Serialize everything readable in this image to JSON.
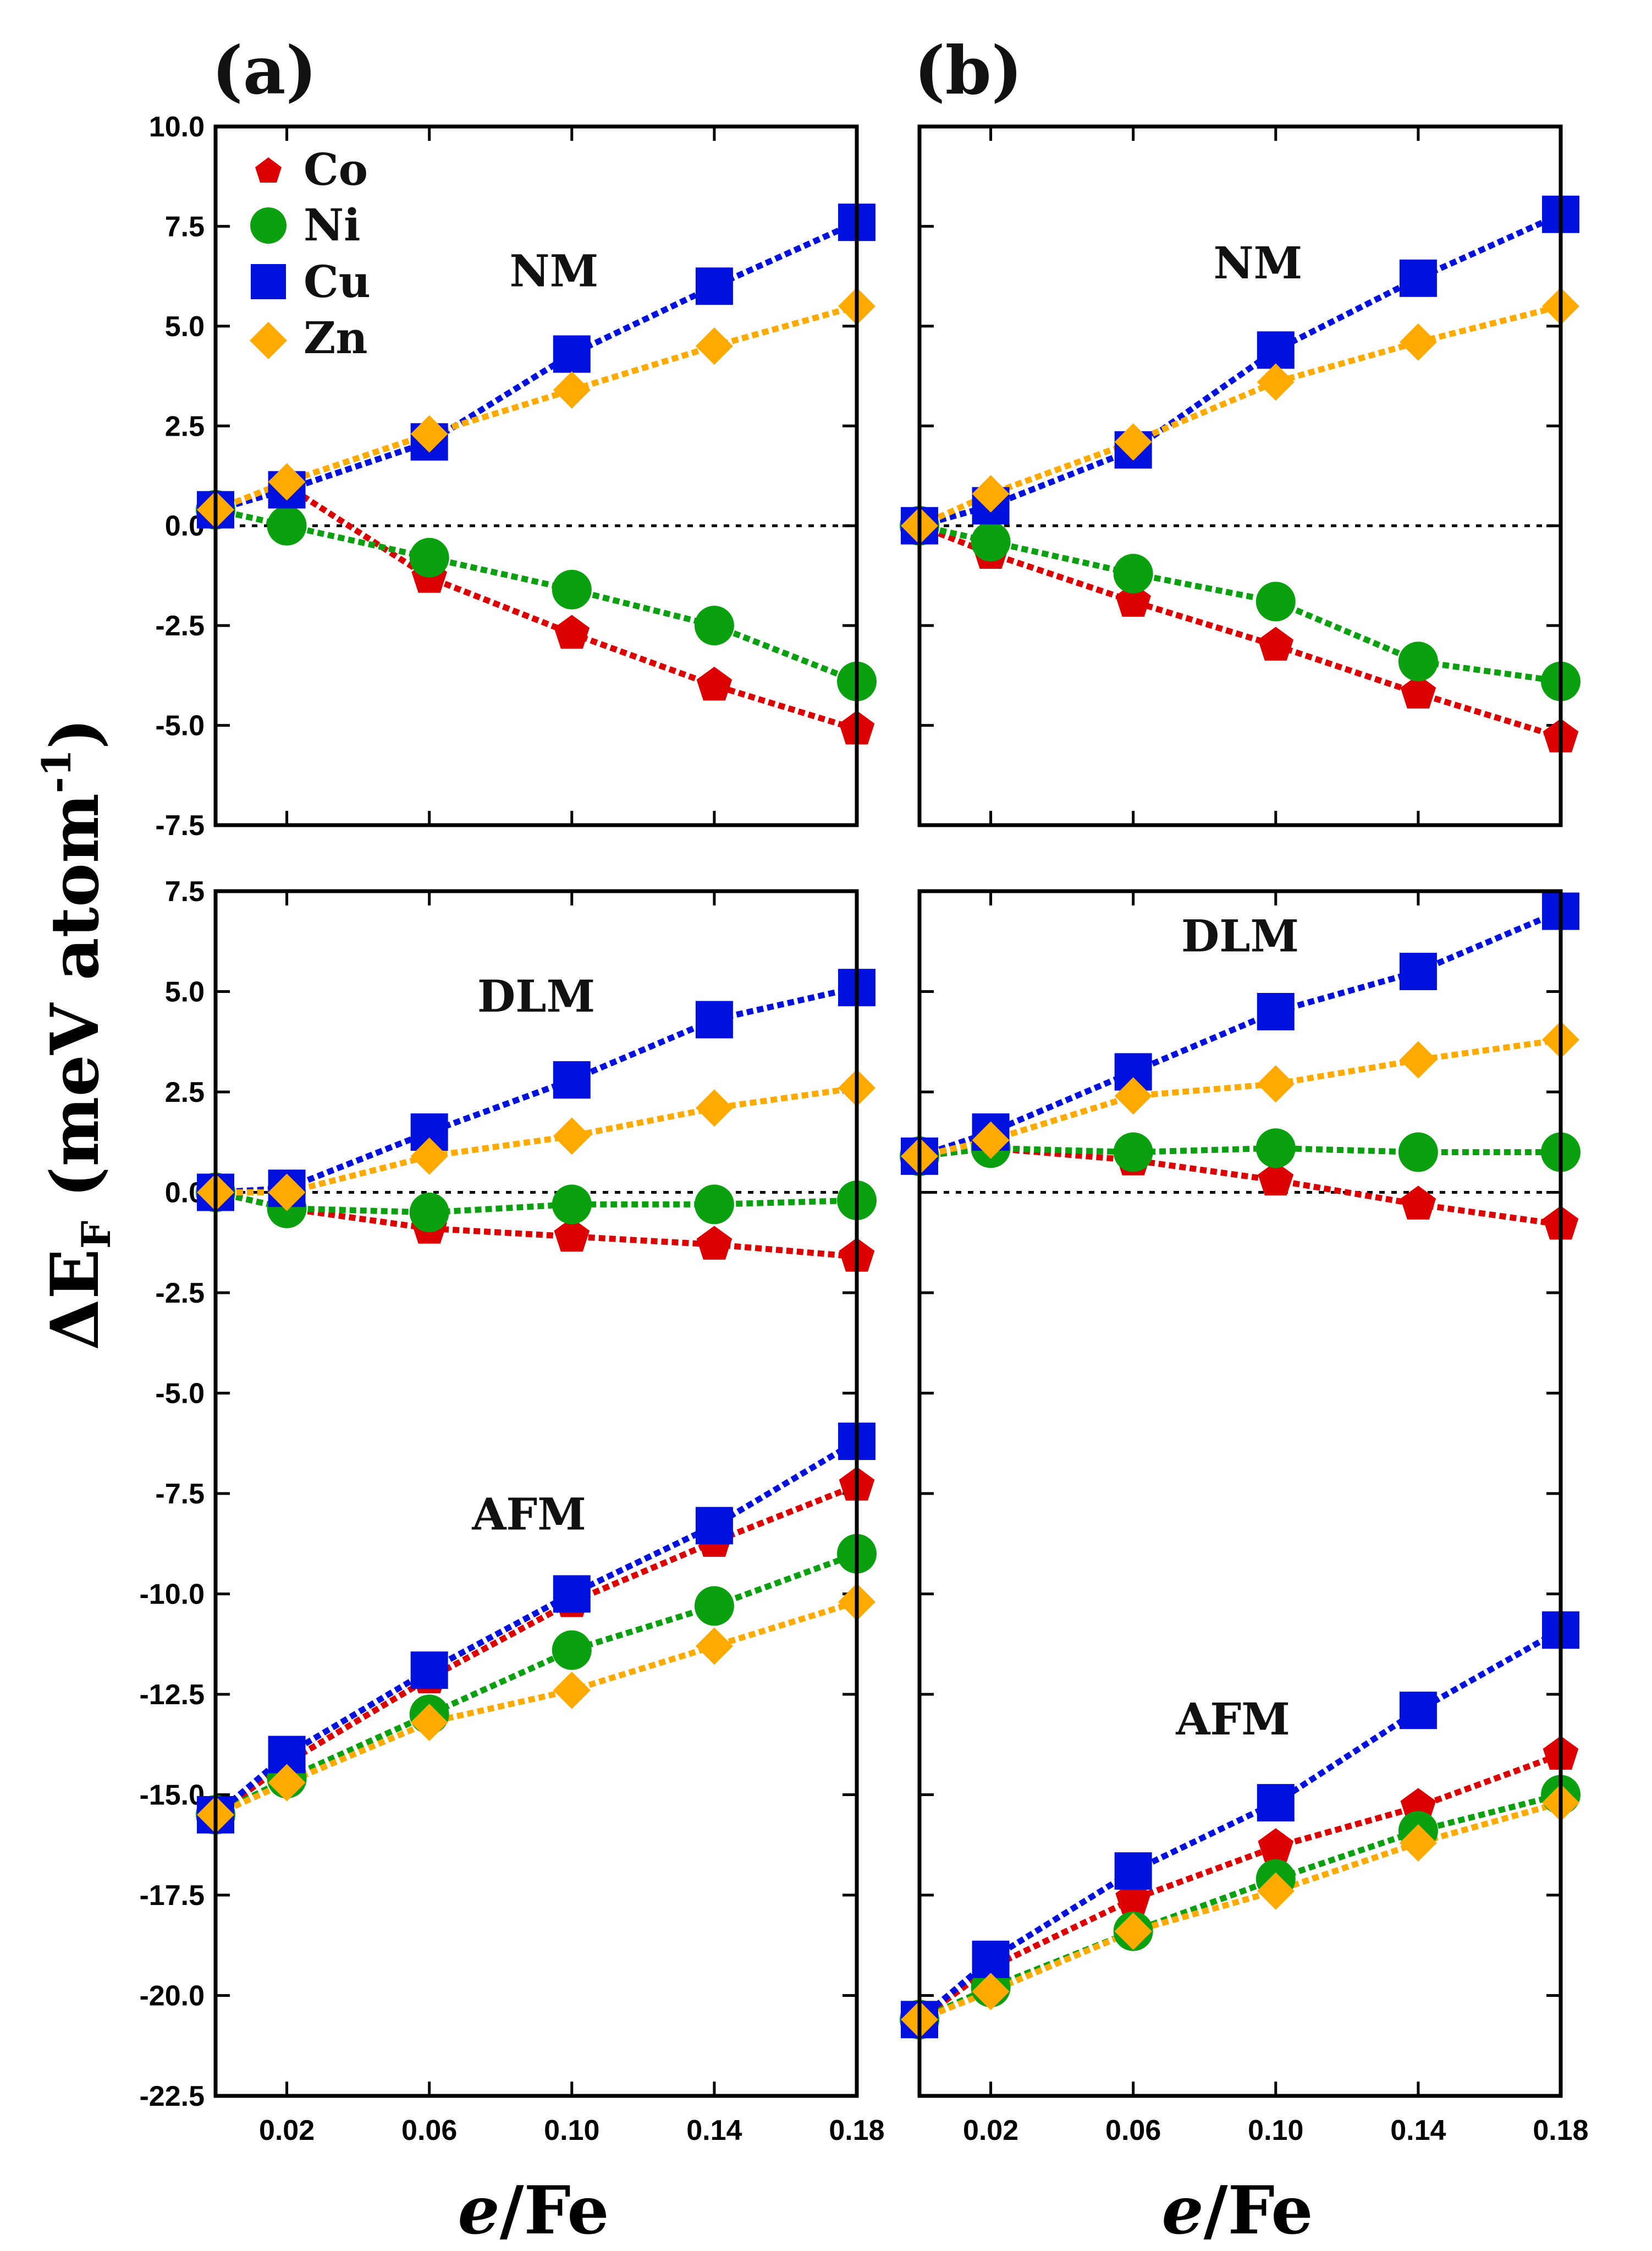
{
  "figure": {
    "ylabel_main": "ΔE",
    "ylabel_sub": "F",
    "ylabel_rest": " (meV atom",
    "ylabel_sup": "-1",
    "ylabel_close": ")",
    "xlabel_var": "e",
    "xlabel_rest": "/Fe"
  },
  "legend": [
    {
      "name": "Co",
      "color": "#dd0000",
      "marker": "pentagon"
    },
    {
      "name": "Ni",
      "color": "#0aa010",
      "marker": "circle"
    },
    {
      "name": "Cu",
      "color": "#0010dd",
      "marker": "square"
    },
    {
      "name": "Zn",
      "color": "#ffaa00",
      "marker": "diamond"
    }
  ],
  "chart_data": [
    {
      "panel": "(a)",
      "region": "top",
      "type": "line",
      "x": [
        0.0,
        0.02,
        0.06,
        0.1,
        0.14,
        0.18
      ],
      "xticks": [
        "0.02",
        "0.06",
        "0.10",
        "0.14",
        "0.18"
      ],
      "xlim": [
        0.0,
        0.18
      ],
      "ylim": [
        -7.5,
        10.0
      ],
      "yticks": [
        "10.0",
        "7.5",
        "5.0",
        "2.5",
        "0.0",
        "-2.5",
        "-5.0",
        "-7.5"
      ],
      "reference_line": 0.0,
      "annotations": [
        {
          "text": "NM",
          "x": 0.095,
          "y": 6.0
        }
      ],
      "series": [
        {
          "name": "Co",
          "values": [
            0.4,
            1.0,
            -1.3,
            -2.7,
            -4.0,
            -5.1
          ]
        },
        {
          "name": "Ni",
          "values": [
            0.4,
            0.0,
            -0.8,
            -1.6,
            -2.5,
            -3.9
          ]
        },
        {
          "name": "Cu",
          "values": [
            0.4,
            0.9,
            2.1,
            4.3,
            6.0,
            7.6
          ]
        },
        {
          "name": "Zn",
          "values": [
            0.4,
            1.1,
            2.3,
            3.4,
            4.5,
            5.5
          ]
        }
      ]
    },
    {
      "panel": "(a)",
      "region": "bottom",
      "type": "line",
      "x": [
        0.0,
        0.02,
        0.06,
        0.1,
        0.14,
        0.18
      ],
      "xticks": [
        "0.02",
        "0.06",
        "0.10",
        "0.14",
        "0.18"
      ],
      "xlim": [
        0.0,
        0.18
      ],
      "ylim": [
        -22.5,
        7.5
      ],
      "yticks": [
        "7.5",
        "5.0",
        "2.5",
        "0.0",
        "-2.5",
        "-5.0",
        "-7.5",
        "-10.0",
        "-12.5",
        "-15.0",
        "-17.5",
        "-20.0",
        "-22.5"
      ],
      "reference_line": 0.0,
      "annotations": [
        {
          "text": "DLM",
          "x": 0.09,
          "y": 4.5
        },
        {
          "text": "AFM",
          "x": 0.088,
          "y": -8.4
        }
      ],
      "series": [
        {
          "name": "Co (DLM)",
          "values": [
            0.0,
            -0.4,
            -0.9,
            -1.1,
            -1.3,
            -1.6
          ]
        },
        {
          "name": "Ni (DLM)",
          "values": [
            0.0,
            -0.4,
            -0.5,
            -0.3,
            -0.3,
            -0.2
          ]
        },
        {
          "name": "Cu (DLM)",
          "values": [
            0.0,
            0.1,
            1.5,
            2.8,
            4.3,
            5.1
          ]
        },
        {
          "name": "Zn (DLM)",
          "values": [
            0.0,
            0.0,
            0.9,
            1.4,
            2.1,
            2.6
          ]
        },
        {
          "name": "Co (AFM)",
          "values": [
            -15.5,
            -14.2,
            -12.1,
            -10.2,
            -8.7,
            -7.3
          ]
        },
        {
          "name": "Ni (AFM)",
          "values": [
            -15.5,
            -14.6,
            -13.0,
            -11.4,
            -10.3,
            -9.0
          ]
        },
        {
          "name": "Cu (AFM)",
          "values": [
            -15.5,
            -14.0,
            -11.9,
            -10.0,
            -8.3,
            -6.2
          ]
        },
        {
          "name": "Zn (AFM)",
          "values": [
            -15.5,
            -14.7,
            -13.2,
            -12.4,
            -11.3,
            -10.2
          ]
        }
      ]
    },
    {
      "panel": "(b)",
      "region": "top",
      "type": "line",
      "x": [
        0.0,
        0.02,
        0.06,
        0.1,
        0.14,
        0.18
      ],
      "xticks": [
        "0.02",
        "0.06",
        "0.10",
        "0.14",
        "0.18"
      ],
      "xlim": [
        0.0,
        0.18
      ],
      "ylim": [
        -7.5,
        10.0
      ],
      "reference_line": 0.0,
      "annotations": [
        {
          "text": "NM",
          "x": 0.095,
          "y": 6.2
        }
      ],
      "series": [
        {
          "name": "Co",
          "values": [
            0.0,
            -0.7,
            -1.9,
            -3.0,
            -4.2,
            -5.3
          ]
        },
        {
          "name": "Ni",
          "values": [
            0.0,
            -0.4,
            -1.2,
            -1.9,
            -3.4,
            -3.9
          ]
        },
        {
          "name": "Cu",
          "values": [
            0.0,
            0.5,
            1.9,
            4.4,
            6.2,
            7.8
          ]
        },
        {
          "name": "Zn",
          "values": [
            0.0,
            0.8,
            2.1,
            3.6,
            4.6,
            5.5
          ]
        }
      ]
    },
    {
      "panel": "(b)",
      "region": "bottom",
      "type": "line",
      "x": [
        0.0,
        0.02,
        0.06,
        0.1,
        0.14,
        0.18
      ],
      "xticks": [
        "0.02",
        "0.06",
        "0.10",
        "0.14",
        "0.18"
      ],
      "xlim": [
        0.0,
        0.18
      ],
      "ylim": [
        -22.5,
        7.5
      ],
      "reference_line": 0.0,
      "annotations": [
        {
          "text": "DLM",
          "x": 0.09,
          "y": 6.0
        },
        {
          "text": "AFM",
          "x": 0.088,
          "y": -13.5
        }
      ],
      "series": [
        {
          "name": "Co (DLM)",
          "values": [
            0.9,
            1.1,
            0.8,
            0.3,
            -0.3,
            -0.8
          ]
        },
        {
          "name": "Ni (DLM)",
          "values": [
            0.9,
            1.1,
            1.0,
            1.1,
            1.0,
            1.0
          ]
        },
        {
          "name": "Cu (DLM)",
          "values": [
            0.9,
            1.5,
            3.0,
            4.5,
            5.5,
            7.0
          ]
        },
        {
          "name": "Zn (DLM)",
          "values": [
            0.9,
            1.3,
            2.4,
            2.7,
            3.3,
            3.8
          ]
        },
        {
          "name": "Co (AFM)",
          "values": [
            -20.6,
            -19.3,
            -17.6,
            -16.3,
            -15.3,
            -14.0
          ]
        },
        {
          "name": "Ni (AFM)",
          "values": [
            -20.6,
            -19.8,
            -18.4,
            -17.1,
            -15.9,
            -15.0
          ]
        },
        {
          "name": "Cu (AFM)",
          "values": [
            -20.6,
            -19.1,
            -16.9,
            -15.2,
            -12.9,
            -10.9
          ]
        },
        {
          "name": "Zn (AFM)",
          "values": [
            -20.6,
            -19.9,
            -18.4,
            -17.4,
            -16.2,
            -15.2
          ]
        }
      ]
    }
  ]
}
